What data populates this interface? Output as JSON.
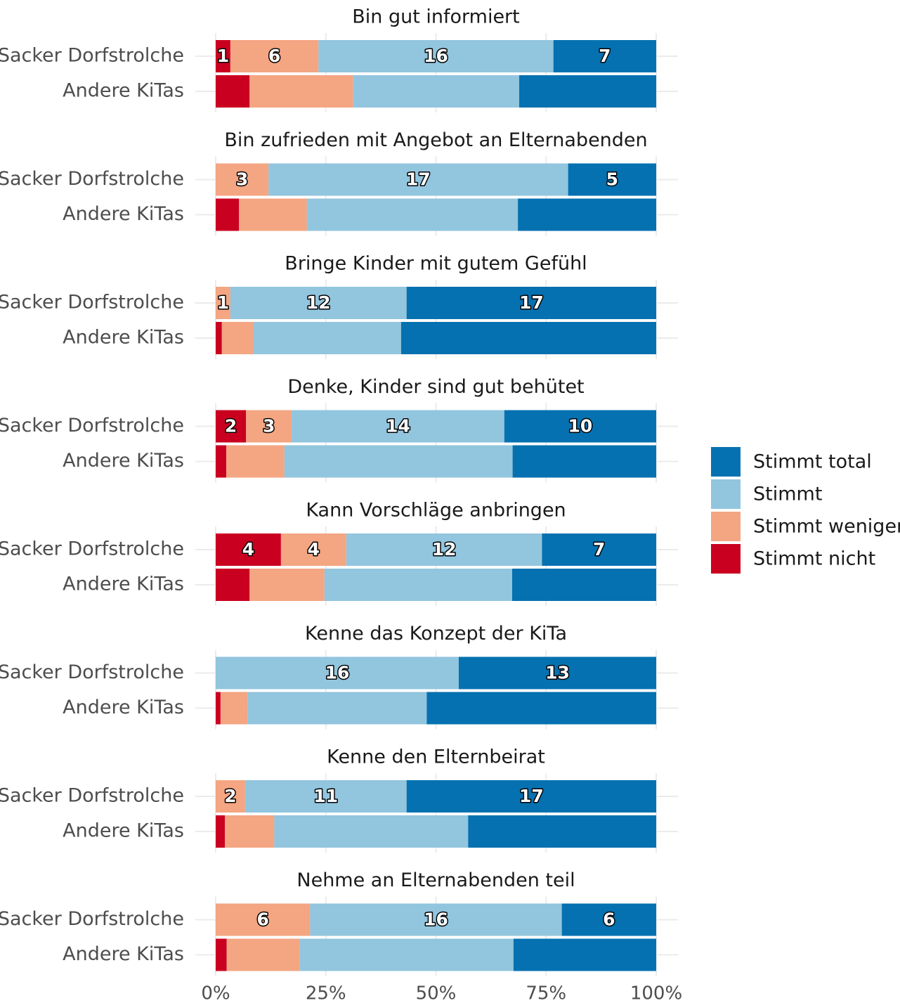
{
  "chart_data": {
    "type": "bar",
    "orientation": "horizontal",
    "stacked": true,
    "percent": true,
    "legend_position": "right",
    "xlim": [
      0,
      100
    ],
    "x_ticks": [
      "0%",
      "25%",
      "50%",
      "75%",
      "100%"
    ],
    "legend": [
      {
        "name": "Stimmt total",
        "color": "#0571b0"
      },
      {
        "name": "Stimmt",
        "color": "#92c5de"
      },
      {
        "name": "Stimmt weniger",
        "color": "#f4a582"
      },
      {
        "name": "Stimmt nicht",
        "color": "#ca0020"
      }
    ],
    "segment_order": [
      "Stimmt nicht",
      "Stimmt weniger",
      "Stimmt",
      "Stimmt total"
    ],
    "colors": {
      "Stimmt nicht": "#ca0020",
      "Stimmt weniger": "#f4a582",
      "Stimmt": "#92c5de",
      "Stimmt total": "#0571b0"
    },
    "groups": [
      "Sacker Dorfstrolche",
      "Andere KiTas"
    ],
    "facets": [
      {
        "title": "Bin gut informiert",
        "rows": [
          {
            "group": "Sacker Dorfstrolche",
            "counts": [
              1,
              6,
              16,
              7
            ]
          },
          {
            "group": "Andere KiTas",
            "shares": [
              7.7,
              23.5,
              37.7,
              31.1
            ]
          }
        ]
      },
      {
        "title": "Bin zufrieden mit Angebot an Elternabenden",
        "rows": [
          {
            "group": "Sacker Dorfstrolche",
            "counts": [
              0,
              3,
              17,
              5
            ]
          },
          {
            "group": "Andere KiTas",
            "shares": [
              5.3,
              15.4,
              47.9,
              31.4
            ]
          }
        ]
      },
      {
        "title": "Bringe Kinder mit gutem Gefühl",
        "rows": [
          {
            "group": "Sacker Dorfstrolche",
            "counts": [
              0,
              1,
              12,
              17
            ]
          },
          {
            "group": "Andere KiTas",
            "shares": [
              1.4,
              7.2,
              33.5,
              57.9
            ]
          }
        ]
      },
      {
        "title": "Denke, Kinder sind gut behütet",
        "rows": [
          {
            "group": "Sacker Dorfstrolche",
            "counts": [
              2,
              3,
              14,
              10
            ]
          },
          {
            "group": "Andere KiTas",
            "shares": [
              2.4,
              13.2,
              51.8,
              32.6
            ]
          }
        ]
      },
      {
        "title": "Kann Vorschläge anbringen",
        "rows": [
          {
            "group": "Sacker Dorfstrolche",
            "counts": [
              4,
              4,
              12,
              7
            ]
          },
          {
            "group": "Andere KiTas",
            "shares": [
              7.7,
              17.0,
              42.6,
              32.7
            ]
          }
        ]
      },
      {
        "title": "Kenne das Konzept der KiTa",
        "rows": [
          {
            "group": "Sacker Dorfstrolche",
            "counts": [
              0,
              0,
              16,
              13
            ]
          },
          {
            "group": "Andere KiTas",
            "shares": [
              1.1,
              6.2,
              40.6,
              52.1
            ]
          }
        ]
      },
      {
        "title": "Kenne den Elternbeirat",
        "rows": [
          {
            "group": "Sacker Dorfstrolche",
            "counts": [
              0,
              2,
              11,
              17
            ]
          },
          {
            "group": "Andere KiTas",
            "shares": [
              2.1,
              11.2,
              44.0,
              42.7
            ]
          }
        ]
      },
      {
        "title": "Nehme an Elternabenden teil",
        "rows": [
          {
            "group": "Sacker Dorfstrolche",
            "counts": [
              0,
              6,
              16,
              6
            ]
          },
          {
            "group": "Andere KiTas",
            "shares": [
              2.5,
              16.6,
              48.5,
              32.4
            ]
          }
        ]
      }
    ]
  }
}
